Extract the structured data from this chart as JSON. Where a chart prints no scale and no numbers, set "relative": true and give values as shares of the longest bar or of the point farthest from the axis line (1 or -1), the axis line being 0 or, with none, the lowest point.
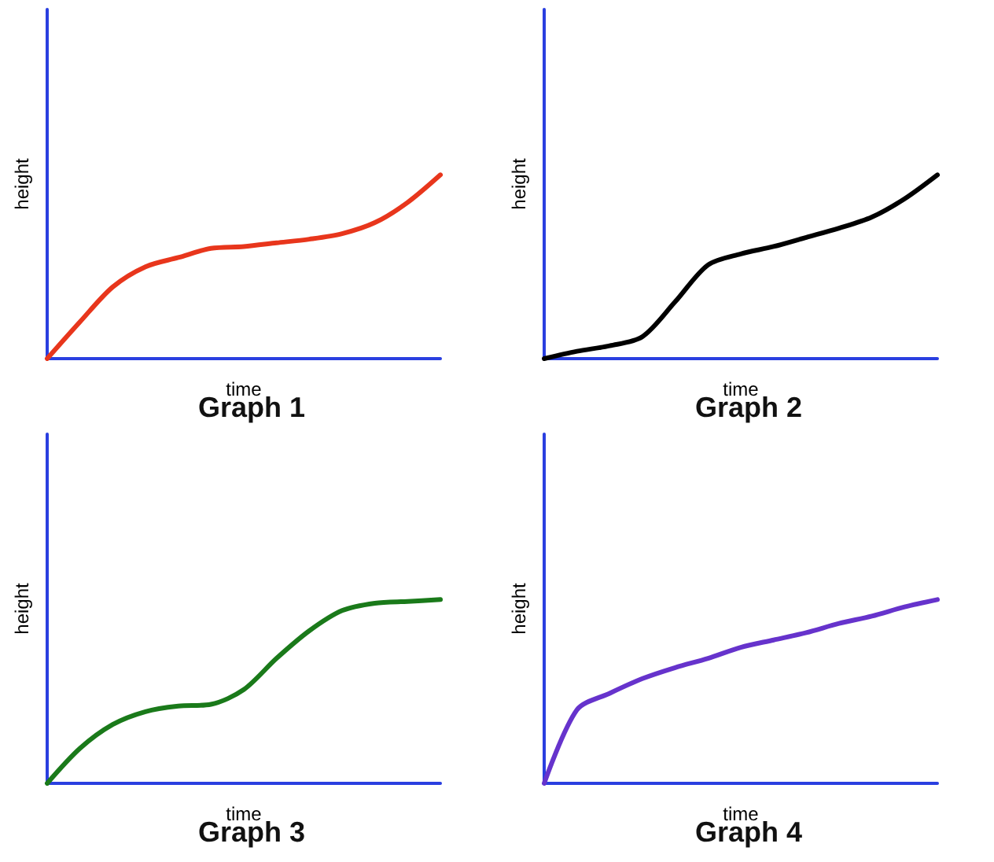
{
  "chart_data": [
    {
      "type": "line",
      "title": "Graph 1",
      "xlabel": "time",
      "ylabel": "height",
      "relative": true,
      "categories": [
        null,
        null,
        null,
        null,
        null,
        null,
        null,
        null,
        null,
        null,
        null,
        null,
        null
      ],
      "series": [
        {
          "color": "#e8361c",
          "values": [
            0,
            0.2,
            0.39,
            0.5,
            0.55,
            0.6,
            0.61,
            0.63,
            0.65,
            0.68,
            0.74,
            0.85,
            1
          ]
        }
      ],
      "grid": false,
      "marker": "none",
      "line_style": "solid"
    },
    {
      "type": "line",
      "title": "Graph 2",
      "xlabel": "time",
      "ylabel": "height",
      "relative": true,
      "categories": [
        null,
        null,
        null,
        null,
        null,
        null,
        null,
        null,
        null,
        null,
        null,
        null,
        null
      ],
      "series": [
        {
          "color": "#000000",
          "values": [
            0,
            0.04,
            0.07,
            0.12,
            0.31,
            0.51,
            0.57,
            0.61,
            0.66,
            0.71,
            0.77,
            0.87,
            1
          ]
        }
      ],
      "grid": false,
      "marker": "none",
      "line_style": "solid"
    },
    {
      "type": "line",
      "title": "Graph 3",
      "xlabel": "time",
      "ylabel": "height",
      "relative": true,
      "categories": [
        null,
        null,
        null,
        null,
        null,
        null,
        null,
        null,
        null,
        null,
        null,
        null,
        null
      ],
      "series": [
        {
          "color": "#1a7a1a",
          "values": [
            0,
            0.19,
            0.32,
            0.39,
            0.42,
            0.43,
            0.51,
            0.68,
            0.83,
            0.94,
            0.98,
            0.99,
            1
          ]
        }
      ],
      "grid": false,
      "marker": "none",
      "line_style": "solid"
    },
    {
      "type": "line",
      "title": "Graph 4",
      "xlabel": "time",
      "ylabel": "height",
      "relative": true,
      "categories": [
        null,
        null,
        null,
        null,
        null,
        null,
        null,
        null,
        null,
        null,
        null,
        null,
        null
      ],
      "series": [
        {
          "color": "#6633cc",
          "values": [
            0,
            0.4,
            0.49,
            0.57,
            0.63,
            0.68,
            0.74,
            0.78,
            0.82,
            0.87,
            0.91,
            0.96,
            1
          ]
        }
      ],
      "grid": false,
      "marker": "none",
      "line_style": "solid"
    }
  ]
}
